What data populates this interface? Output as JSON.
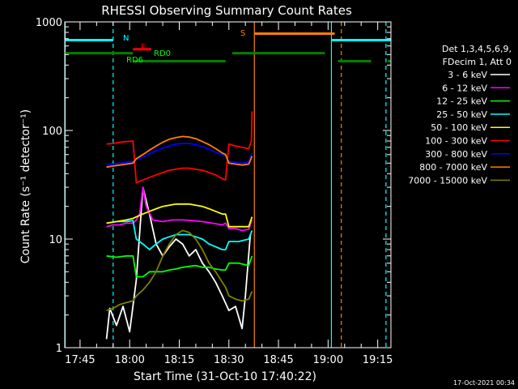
{
  "chart_data": {
    "type": "line",
    "title": "RHESSI Observing Summary Count Rates",
    "xlabel": "Start Time (31-Oct-10 17:40:22)",
    "ylabel": "Count Rate (s⁻¹ detector⁻¹)",
    "yscale": "log",
    "xlim_min": [
      40.37,
      139.0
    ],
    "ylim": [
      1,
      1000
    ],
    "x_ticks": [
      {
        "min": 45,
        "label": "17:45"
      },
      {
        "min": 60,
        "label": "18:00"
      },
      {
        "min": 75,
        "label": "18:15"
      },
      {
        "min": 90,
        "label": "18:30"
      },
      {
        "min": 105,
        "label": "18:45"
      },
      {
        "min": 120,
        "label": "19:00"
      },
      {
        "min": 135,
        "label": "19:15"
      }
    ],
    "y_ticks": [
      {
        "v": 1,
        "label": "1"
      },
      {
        "v": 10,
        "label": "10"
      },
      {
        "v": 100,
        "label": "100"
      },
      {
        "v": 1000,
        "label": "1000"
      }
    ],
    "legend_header": [
      "Det 1,3,4,5,6,9,",
      "FDecim 1, Att 0"
    ],
    "series": [
      {
        "name": "3 - 6 keV",
        "color": "#ffffff",
        "points": [
          [
            53,
            1.2
          ],
          [
            54,
            2.3
          ],
          [
            56,
            1.6
          ],
          [
            58,
            2.4
          ],
          [
            60,
            1.4
          ],
          [
            62,
            4.2
          ],
          [
            64,
            30
          ],
          [
            66,
            17
          ],
          [
            68,
            9
          ],
          [
            70,
            7
          ],
          [
            72,
            8.5
          ],
          [
            74,
            10
          ],
          [
            76,
            9
          ],
          [
            78,
            7
          ],
          [
            80,
            8
          ],
          [
            82,
            6
          ],
          [
            84,
            5
          ],
          [
            86,
            4
          ],
          [
            88,
            3
          ],
          [
            90,
            2.2
          ],
          [
            92,
            2.4
          ],
          [
            94,
            1.5
          ],
          [
            95,
            3
          ],
          [
            96.5,
            11
          ]
        ]
      },
      {
        "name": "6 - 12 keV",
        "color": "#ff00ff",
        "points": [
          [
            53,
            13
          ],
          [
            55,
            13.5
          ],
          [
            57,
            13.5
          ],
          [
            59,
            14
          ],
          [
            61,
            14
          ],
          [
            62,
            15
          ],
          [
            63,
            17
          ],
          [
            64,
            30
          ],
          [
            65,
            20
          ],
          [
            67,
            15
          ],
          [
            70,
            14.5
          ],
          [
            73,
            15
          ],
          [
            76,
            15
          ],
          [
            79,
            14.8
          ],
          [
            82,
            14.5
          ],
          [
            85,
            14
          ],
          [
            88,
            13.5
          ],
          [
            89,
            14
          ],
          [
            90,
            12.5
          ],
          [
            92,
            12.5
          ],
          [
            94,
            12
          ],
          [
            96,
            12.3
          ],
          [
            97,
            15
          ]
        ]
      },
      {
        "name": "12 - 25 keV",
        "color": "#00ff00",
        "points": [
          [
            53,
            7
          ],
          [
            56,
            6.8
          ],
          [
            59,
            7
          ],
          [
            61,
            7
          ],
          [
            62,
            4.5
          ],
          [
            64,
            4.5
          ],
          [
            66,
            5
          ],
          [
            68,
            5
          ],
          [
            70,
            5
          ],
          [
            72,
            5.2
          ],
          [
            74,
            5.3
          ],
          [
            76,
            5.5
          ],
          [
            78,
            5.6
          ],
          [
            80,
            5.7
          ],
          [
            82,
            5.5
          ],
          [
            84,
            5.5
          ],
          [
            86,
            5.3
          ],
          [
            88,
            5.2
          ],
          [
            89,
            5.2
          ],
          [
            90,
            6
          ],
          [
            93,
            6
          ],
          [
            96,
            5.7
          ],
          [
            97,
            7
          ]
        ]
      },
      {
        "name": "25 - 50 keV",
        "color": "#00ffff",
        "points": [
          [
            53,
            14
          ],
          [
            56,
            14.5
          ],
          [
            59,
            14.5
          ],
          [
            61,
            14.8
          ],
          [
            62,
            10
          ],
          [
            64,
            9
          ],
          [
            66,
            8
          ],
          [
            68,
            9
          ],
          [
            70,
            10
          ],
          [
            72,
            10.5
          ],
          [
            74,
            11
          ],
          [
            76,
            11
          ],
          [
            78,
            11
          ],
          [
            80,
            10.5
          ],
          [
            82,
            10
          ],
          [
            84,
            9
          ],
          [
            86,
            8.5
          ],
          [
            88,
            8
          ],
          [
            89,
            8
          ],
          [
            90,
            9.5
          ],
          [
            93,
            9.5
          ],
          [
            96,
            10
          ],
          [
            97,
            12
          ]
        ]
      },
      {
        "name": "50 - 100 keV",
        "color": "#ffff00",
        "points": [
          [
            53,
            14
          ],
          [
            56,
            14.5
          ],
          [
            59,
            15
          ],
          [
            61,
            15.5
          ],
          [
            62,
            16
          ],
          [
            64,
            17
          ],
          [
            66,
            18
          ],
          [
            68,
            19
          ],
          [
            70,
            20
          ],
          [
            72,
            20.5
          ],
          [
            74,
            21
          ],
          [
            76,
            21
          ],
          [
            78,
            21
          ],
          [
            80,
            20.5
          ],
          [
            82,
            20
          ],
          [
            84,
            19
          ],
          [
            86,
            18
          ],
          [
            88,
            17
          ],
          [
            89,
            17
          ],
          [
            90,
            13
          ],
          [
            93,
            13
          ],
          [
            96,
            13
          ],
          [
            97,
            16
          ]
        ]
      },
      {
        "name": "100 - 300 keV",
        "color": "#ff0000",
        "points": [
          [
            53,
            75
          ],
          [
            55,
            76
          ],
          [
            57,
            78
          ],
          [
            59,
            79
          ],
          [
            61,
            80
          ],
          [
            62,
            33
          ],
          [
            64,
            35
          ],
          [
            66,
            37
          ],
          [
            68,
            39
          ],
          [
            70,
            41
          ],
          [
            72,
            43
          ],
          [
            74,
            44
          ],
          [
            76,
            45
          ],
          [
            78,
            45
          ],
          [
            80,
            44
          ],
          [
            82,
            43
          ],
          [
            84,
            41
          ],
          [
            86,
            39
          ],
          [
            88,
            36
          ],
          [
            89,
            35
          ],
          [
            90,
            75
          ],
          [
            92,
            72
          ],
          [
            94,
            70
          ],
          [
            96,
            68
          ],
          [
            96.8,
            80
          ],
          [
            97,
            150
          ]
        ]
      },
      {
        "name": "300 - 800 keV",
        "color": "#0000ff",
        "points": [
          [
            53,
            48
          ],
          [
            55,
            49
          ],
          [
            57,
            50
          ],
          [
            59,
            51
          ],
          [
            61,
            52
          ],
          [
            62,
            54
          ],
          [
            64,
            57
          ],
          [
            66,
            61
          ],
          [
            68,
            65
          ],
          [
            70,
            69
          ],
          [
            72,
            72
          ],
          [
            74,
            75
          ],
          [
            76,
            76
          ],
          [
            78,
            76
          ],
          [
            80,
            74
          ],
          [
            82,
            71
          ],
          [
            84,
            67
          ],
          [
            86,
            63
          ],
          [
            88,
            60
          ],
          [
            89,
            58
          ],
          [
            90,
            52
          ],
          [
            92,
            51
          ],
          [
            94,
            50
          ],
          [
            96,
            51
          ],
          [
            97,
            62
          ]
        ]
      },
      {
        "name": "800 - 7000 keV",
        "color": "#ff8000",
        "points": [
          [
            53,
            46
          ],
          [
            55,
            47
          ],
          [
            57,
            48
          ],
          [
            59,
            49
          ],
          [
            61,
            50
          ],
          [
            62,
            55
          ],
          [
            64,
            60
          ],
          [
            66,
            66
          ],
          [
            68,
            72
          ],
          [
            70,
            78
          ],
          [
            72,
            83
          ],
          [
            74,
            86
          ],
          [
            76,
            88
          ],
          [
            78,
            87
          ],
          [
            80,
            84
          ],
          [
            82,
            79
          ],
          [
            84,
            74
          ],
          [
            86,
            68
          ],
          [
            88,
            62
          ],
          [
            89,
            60
          ],
          [
            90,
            50
          ],
          [
            92,
            49
          ],
          [
            94,
            48
          ],
          [
            96,
            49
          ],
          [
            97,
            58
          ]
        ]
      },
      {
        "name": "7000 - 15000 keV",
        "color": "#808000",
        "points": [
          [
            53,
            2.2
          ],
          [
            55,
            2.3
          ],
          [
            57,
            2.5
          ],
          [
            59,
            2.6
          ],
          [
            61,
            2.7
          ],
          [
            62,
            3
          ],
          [
            64,
            3.4
          ],
          [
            66,
            4
          ],
          [
            68,
            5
          ],
          [
            70,
            7
          ],
          [
            72,
            9
          ],
          [
            74,
            11
          ],
          [
            76,
            12
          ],
          [
            78,
            11.5
          ],
          [
            80,
            10
          ],
          [
            82,
            8
          ],
          [
            84,
            6
          ],
          [
            86,
            5
          ],
          [
            88,
            4
          ],
          [
            89,
            3.6
          ],
          [
            90,
            3
          ],
          [
            92,
            2.8
          ],
          [
            94,
            2.7
          ],
          [
            96,
            2.8
          ],
          [
            97,
            3.3
          ]
        ]
      }
    ],
    "flag_bars": [
      {
        "label": "N",
        "color": "#00ffff",
        "y": 680,
        "segments": [
          [
            40.37,
            55
          ],
          [
            121,
            139
          ]
        ]
      },
      {
        "label": "F",
        "color": "#ff0000",
        "y": 560,
        "segments": [
          [
            61,
            66.5
          ]
        ]
      },
      {
        "label": "RD0",
        "color": "#008000",
        "y": 515,
        "segments": [
          [
            40.37,
            61
          ],
          [
            91,
            119
          ]
        ]
      },
      {
        "label": "RD6",
        "color": "#008000",
        "y": 435,
        "segments": [
          [
            61,
            89
          ],
          [
            123,
            133
          ],
          [
            138,
            139
          ]
        ]
      },
      {
        "label": "S",
        "color": "#ff8000",
        "y": 780,
        "segments": [
          [
            97.7,
            122
          ]
        ]
      }
    ],
    "vlines": [
      {
        "x": 40.5,
        "color": "#00ffff",
        "style": "solid"
      },
      {
        "x": 55,
        "color": "#00ffff",
        "style": "dashed"
      },
      {
        "x": 97.7,
        "color": "#ff8000",
        "style": "solid"
      },
      {
        "x": 121,
        "color": "#00ffff",
        "style": "solid"
      },
      {
        "x": 124,
        "color": "#ff8000",
        "style": "dashed"
      },
      {
        "x": 137.5,
        "color": "#00ffff",
        "style": "dashed"
      }
    ],
    "grid": false,
    "legend_position": "right"
  },
  "footer": {
    "timestamp": "17-Oct-2021 00:34"
  }
}
